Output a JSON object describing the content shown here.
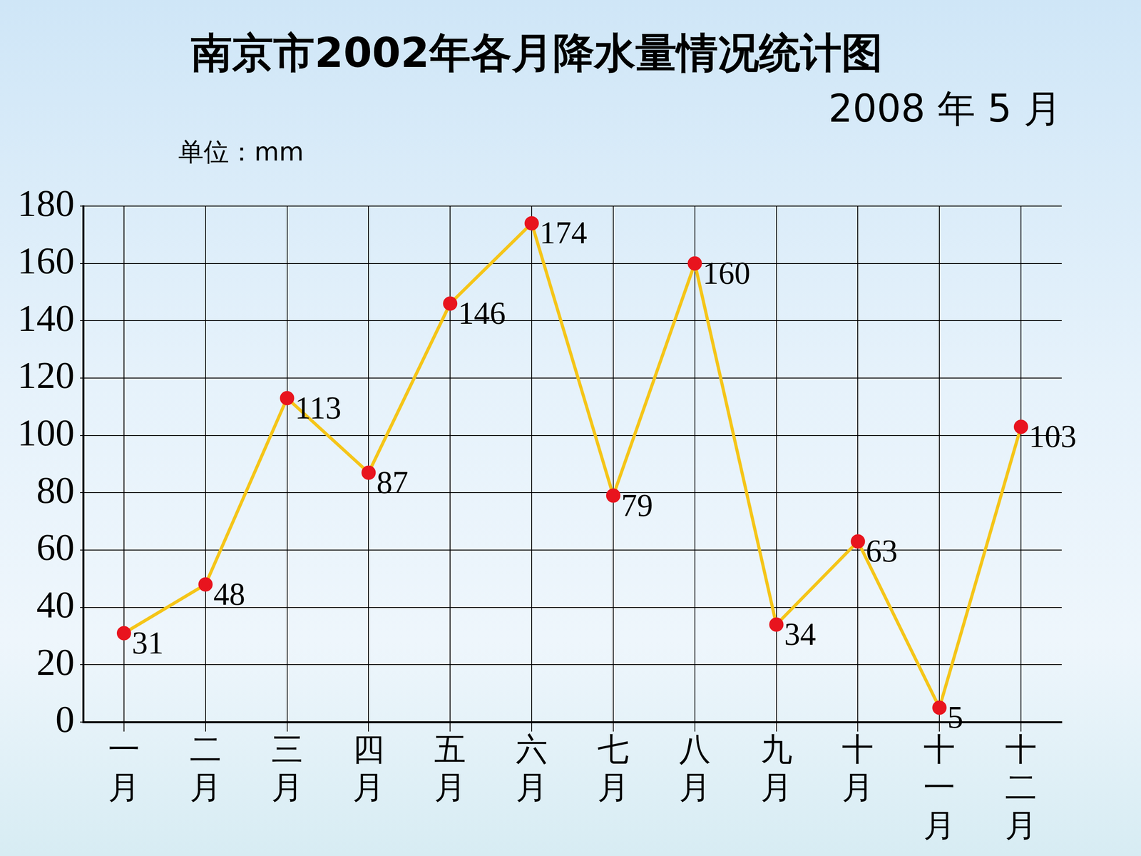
{
  "chart_data": {
    "type": "line",
    "title": "南京市2002年各月降水量情况统计图",
    "subtitle": "2008 年 5 月",
    "y_label": "单位：mm",
    "categories": [
      "一月",
      "二月",
      "三月",
      "四月",
      "五月",
      "六月",
      "七月",
      "八月",
      "九月",
      "十月",
      "十一月",
      "十二月"
    ],
    "values": [
      31,
      48,
      113,
      87,
      146,
      174,
      79,
      160,
      34,
      63,
      5,
      103
    ],
    "color": "#f5c518",
    "marker": "circle",
    "ylim": [
      0,
      180
    ],
    "yticks": [
      0,
      20,
      40,
      60,
      80,
      100,
      120,
      140,
      160,
      180
    ],
    "grid": true,
    "data_labels": true
  }
}
